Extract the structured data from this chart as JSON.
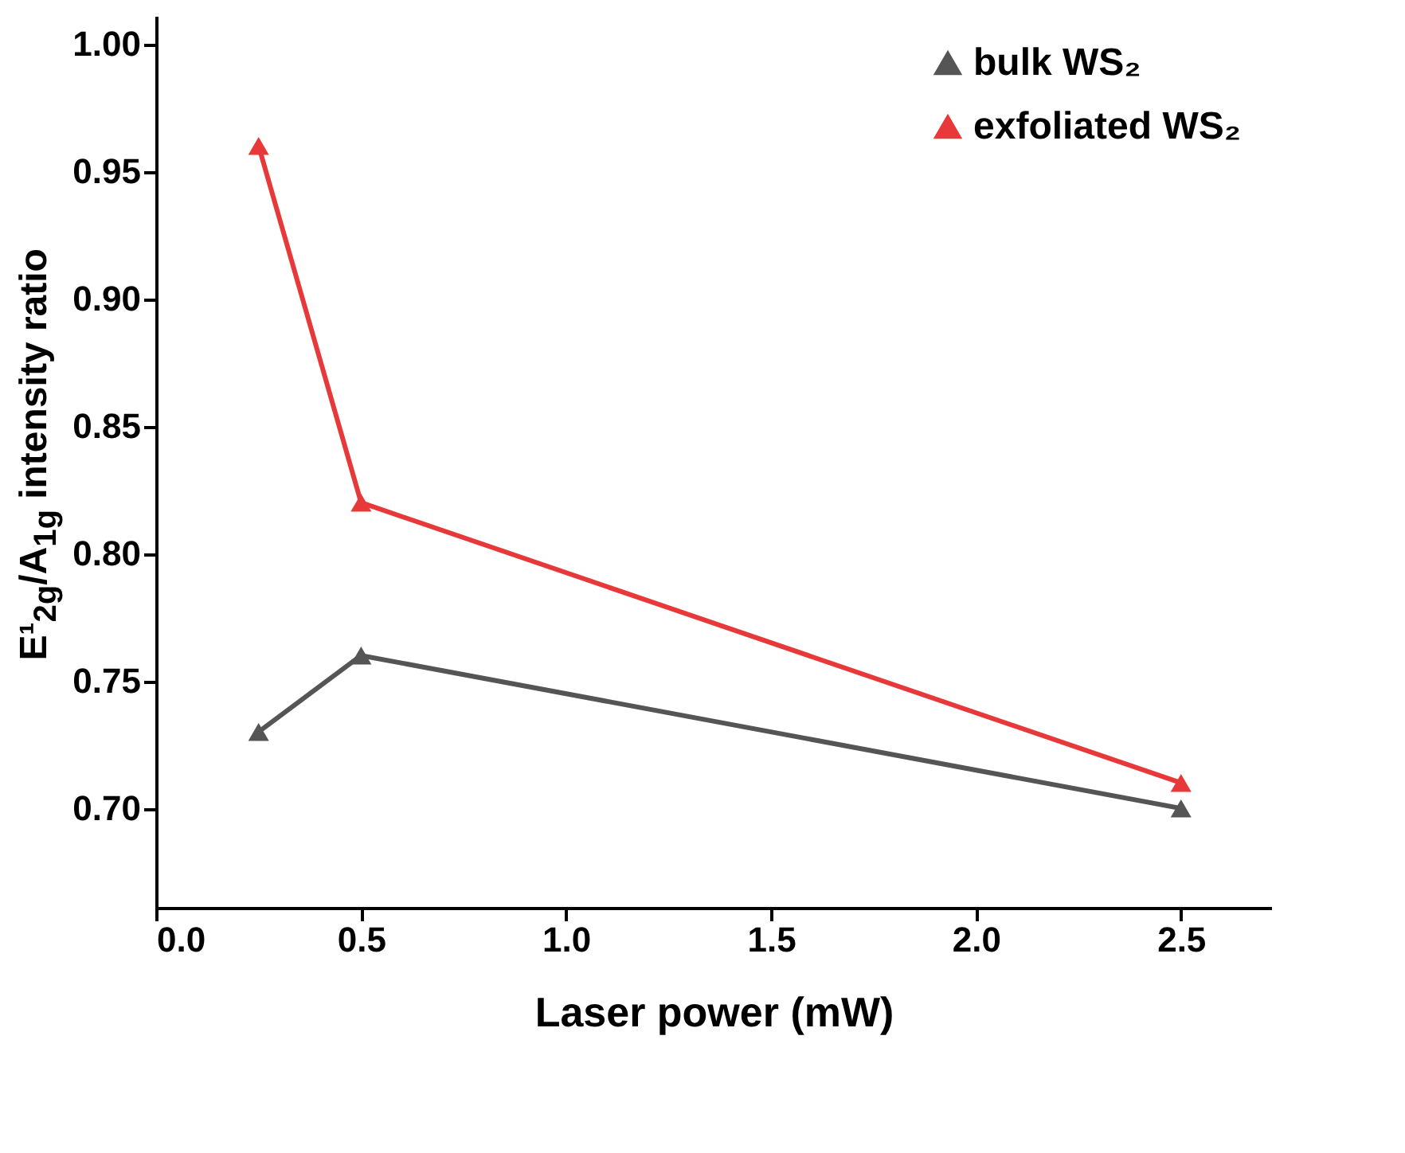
{
  "chart_data": {
    "type": "line",
    "xlabel": "Laser power (mW)",
    "ylabel": "E¹$_{2g}$/A$_{1g}$ intensity ratio",
    "x": [
      0.25,
      0.5,
      2.5
    ],
    "series": [
      {
        "name": "bulk WS₂",
        "color": "#555555",
        "values": [
          0.73,
          0.76,
          0.7
        ]
      },
      {
        "name": "exfoliated WS₂",
        "color": "#e8393a",
        "values": [
          0.96,
          0.82,
          0.71
        ]
      }
    ],
    "xlim": [
      0,
      2.72
    ],
    "xticks": [
      {
        "value": 0,
        "label": "0.0"
      },
      {
        "value": 0.5,
        "label": "0.5"
      },
      {
        "value": 1,
        "label": "1.0"
      },
      {
        "value": 1.5,
        "label": "1.5"
      },
      {
        "value": 2,
        "label": "2.0"
      },
      {
        "value": 2.5,
        "label": "2.5"
      }
    ],
    "ylim": [
      0.661,
      1.011
    ],
    "yticks": [
      {
        "value": 0.7,
        "label": "0.70"
      },
      {
        "value": 0.75,
        "label": "0.75"
      },
      {
        "value": 0.8,
        "label": "0.80"
      },
      {
        "value": 0.85,
        "label": "0.85"
      },
      {
        "value": 0.9,
        "label": "0.90"
      },
      {
        "value": 0.95,
        "label": "0.95"
      },
      {
        "value": 1,
        "label": "1.00"
      }
    ],
    "legend": "top right",
    "marker": "triangle",
    "line_style": "solid",
    "grid": false
  }
}
